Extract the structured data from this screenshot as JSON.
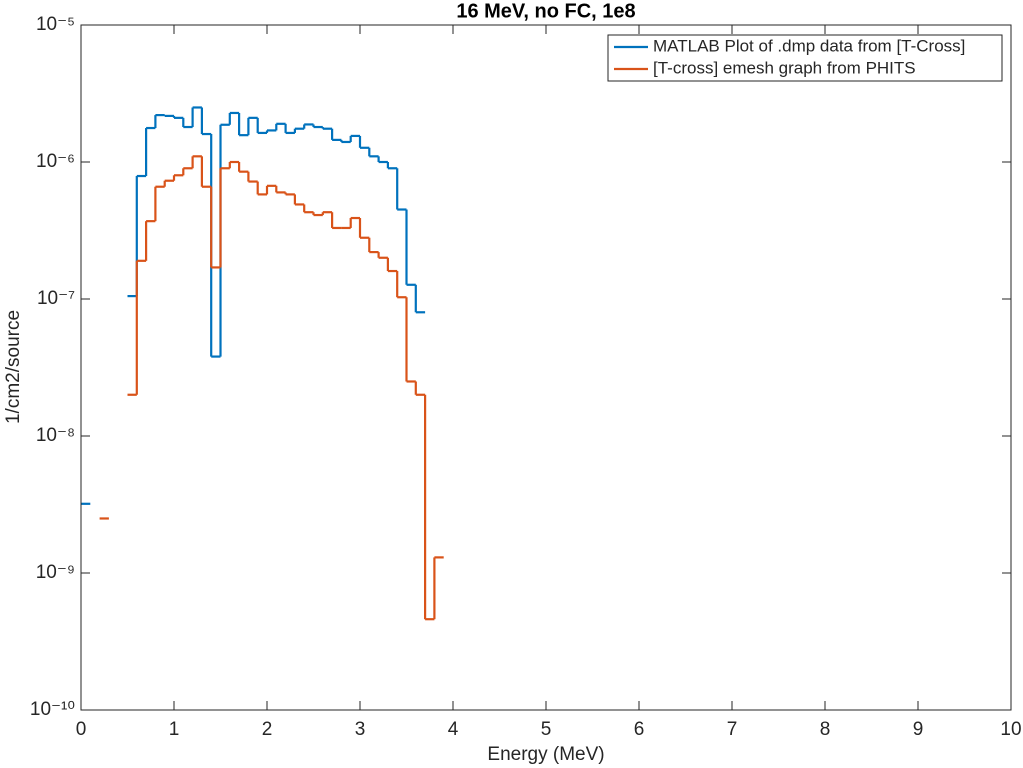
{
  "chart_data": {
    "type": "stairs",
    "title": "16 MeV, no FC, 1e8",
    "xlabel": "Energy (MeV)",
    "ylabel": "1/cm2/source",
    "xlim": [
      0,
      10
    ],
    "xticks": [
      0,
      1,
      2,
      3,
      4,
      5,
      6,
      7,
      8,
      9,
      10
    ],
    "ylim": [
      1e-10,
      1e-05
    ],
    "log_y": true,
    "yticks": [
      {
        "value": 1e-10,
        "label": "10⁻¹⁰"
      },
      {
        "value": 1e-09,
        "label": "10⁻⁹"
      },
      {
        "value": 1e-08,
        "label": "10⁻⁸"
      },
      {
        "value": 1e-07,
        "label": "10⁻⁷"
      },
      {
        "value": 1e-06,
        "label": "10⁻⁶"
      },
      {
        "value": 1e-05,
        "label": "10⁻⁵"
      }
    ],
    "grid": false,
    "legend": "upper right",
    "series": [
      {
        "name": "MATLAB Plot of .dmp data from [T-Cross]",
        "color": "#0072bd",
        "bins": [
          0,
          0.1,
          0.2,
          0.3,
          0.4,
          0.5,
          0.6,
          0.7,
          0.8,
          0.9,
          1.0,
          1.1,
          1.2,
          1.3,
          1.4,
          1.5,
          1.6,
          1.7,
          1.8,
          1.9,
          2.0,
          2.1,
          2.2,
          2.3,
          2.4,
          2.5,
          2.6,
          2.7,
          2.8,
          2.9,
          3.0,
          3.1,
          3.2,
          3.3,
          3.4,
          3.5,
          3.6,
          3.7
        ],
        "values": [
          3.2e-09,
          null,
          null,
          null,
          null,
          1.05e-07,
          7.9e-07,
          1.77e-06,
          2.2e-06,
          2.17e-06,
          2.1e-06,
          1.8e-06,
          2.5e-06,
          1.6e-06,
          3.8e-08,
          1.87e-06,
          2.28e-06,
          1.57e-06,
          2.1e-06,
          1.63e-06,
          1.7e-06,
          1.9e-06,
          1.63e-06,
          1.75e-06,
          1.88e-06,
          1.8e-06,
          1.75e-06,
          1.45e-06,
          1.4e-06,
          1.55e-06,
          1.27e-06,
          1.1e-06,
          1e-06,
          9e-07,
          4.5e-07,
          1.27e-07,
          8e-08
        ]
      },
      {
        "name": "[T-cross] emesh graph from PHITS",
        "color": "#d95319",
        "bins": [
          0.2,
          0.3,
          0.4,
          0.5,
          0.6,
          0.7,
          0.8,
          0.9,
          1.0,
          1.1,
          1.2,
          1.3,
          1.4,
          1.5,
          1.6,
          1.7,
          1.8,
          1.9,
          2.0,
          2.1,
          2.2,
          2.3,
          2.4,
          2.5,
          2.6,
          2.7,
          2.8,
          2.9,
          3.0,
          3.1,
          3.2,
          3.3,
          3.4,
          3.5,
          3.6,
          3.7,
          3.8,
          3.9
        ],
        "values": [
          2.5e-09,
          null,
          null,
          2e-08,
          1.9e-07,
          3.7e-07,
          6.6e-07,
          7.3e-07,
          8e-07,
          9e-07,
          1.1e-06,
          6.6e-07,
          1.7e-07,
          9e-07,
          1e-06,
          8.5e-07,
          7.2e-07,
          5.8e-07,
          6.7e-07,
          6e-07,
          5.8e-07,
          4.9e-07,
          4.3e-07,
          4.1e-07,
          4.3e-07,
          3.3e-07,
          3.3e-07,
          3.9e-07,
          2.8e-07,
          2.2e-07,
          2e-07,
          1.6e-07,
          1.03e-07,
          2.5e-08,
          2e-08,
          4.6e-10,
          1.3e-09
        ]
      }
    ]
  }
}
